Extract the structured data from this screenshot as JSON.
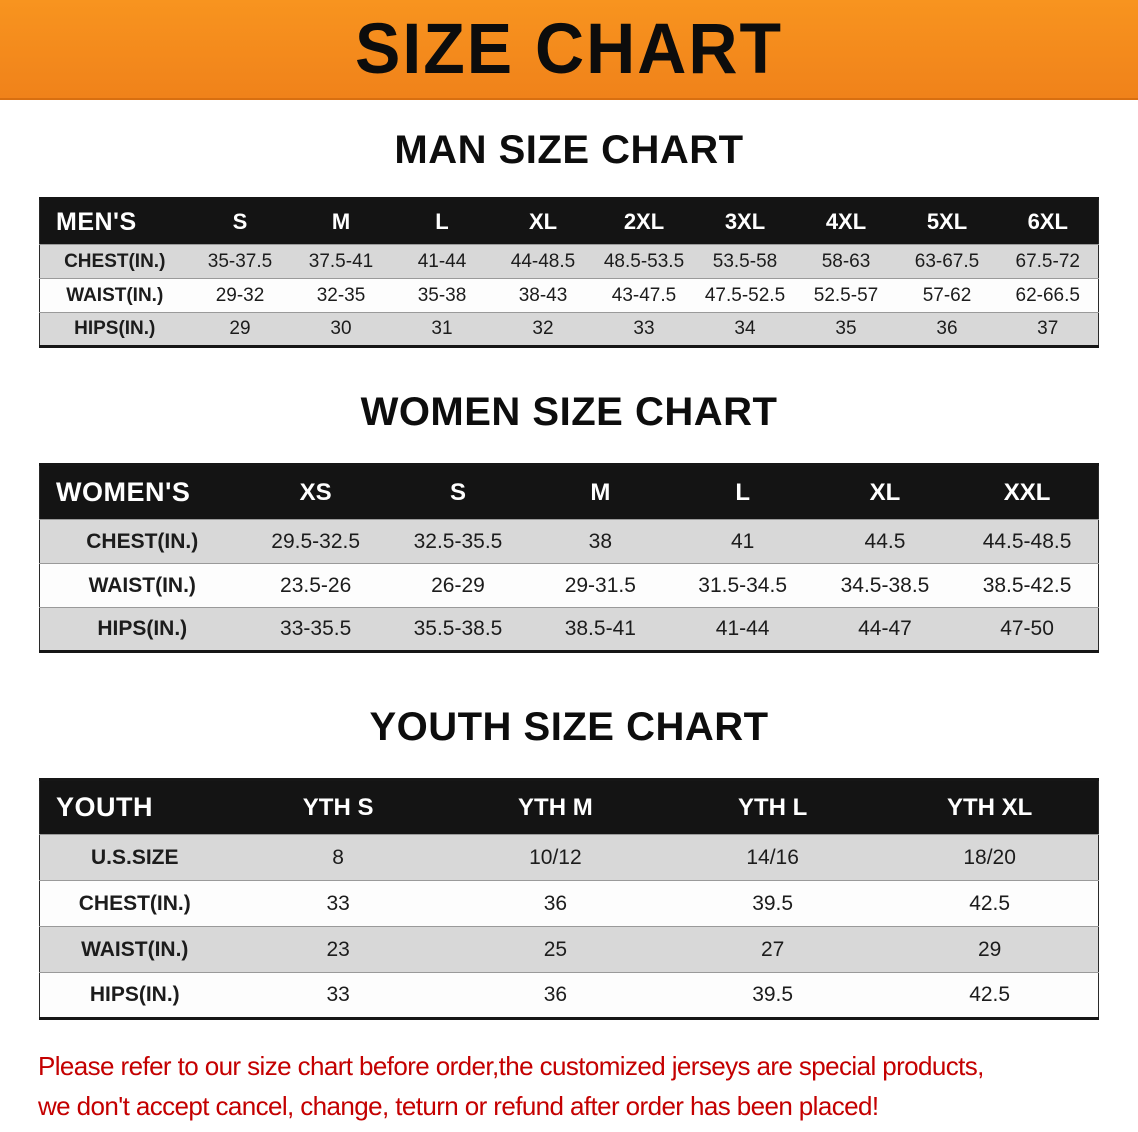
{
  "banner": {
    "title": "SIZE CHART"
  },
  "sections": [
    {
      "heading": "MAN SIZE CHART",
      "table": {
        "title": "MEN'S",
        "columns": [
          "S",
          "M",
          "L",
          "XL",
          "2XL",
          "3XL",
          "4XL",
          "5XL",
          "6XL"
        ],
        "rows": [
          {
            "label": "CHEST(IN.)",
            "values": [
              "35-37.5",
              "37.5-41",
              "41-44",
              "44-48.5",
              "48.5-53.5",
              "53.5-58",
              "58-63",
              "63-67.5",
              "67.5-72"
            ]
          },
          {
            "label": "WAIST(IN.)",
            "values": [
              "29-32",
              "32-35",
              "35-38",
              "38-43",
              "43-47.5",
              "47.5-52.5",
              "52.5-57",
              "57-62",
              "62-66.5"
            ]
          },
          {
            "label": "HIPS(IN.)",
            "values": [
              "29",
              "30",
              "31",
              "32",
              "33",
              "34",
              "35",
              "36",
              "37"
            ]
          }
        ]
      }
    },
    {
      "heading": "WOMEN SIZE CHART",
      "table": {
        "title": "WOMEN'S",
        "columns": [
          "XS",
          "S",
          "M",
          "L",
          "XL",
          "XXL"
        ],
        "rows": [
          {
            "label": "CHEST(IN.)",
            "values": [
              "29.5-32.5",
              "32.5-35.5",
              "38",
              "41",
              "44.5",
              "44.5-48.5"
            ]
          },
          {
            "label": "WAIST(IN.)",
            "values": [
              "23.5-26",
              "26-29",
              "29-31.5",
              "31.5-34.5",
              "34.5-38.5",
              "38.5-42.5"
            ]
          },
          {
            "label": "HIPS(IN.)",
            "values": [
              "33-35.5",
              "35.5-38.5",
              "38.5-41",
              "41-44",
              "44-47",
              "47-50"
            ]
          }
        ]
      }
    },
    {
      "heading": "YOUTH SIZE CHART",
      "table": {
        "title": "YOUTH",
        "columns": [
          "YTH S",
          "YTH M",
          "YTH L",
          "YTH XL"
        ],
        "rows": [
          {
            "label": "U.S.SIZE",
            "values": [
              "8",
              "10/12",
              "14/16",
              "18/20"
            ]
          },
          {
            "label": "CHEST(IN.)",
            "values": [
              "33",
              "36",
              "39.5",
              "42.5"
            ]
          },
          {
            "label": "WAIST(IN.)",
            "values": [
              "23",
              "25",
              "27",
              "29"
            ]
          },
          {
            "label": "HIPS(IN.)",
            "values": [
              "33",
              "36",
              "39.5",
              "42.5"
            ]
          }
        ]
      }
    }
  ],
  "disclaimer": {
    "lines": [
      "Please refer to our size chart before order,the customized jerseys are special products,",
      "we don't accept cancel, change, teturn or refund after order has been placed!"
    ]
  },
  "colors": {
    "banner_orange": "#f68a1c",
    "table_header_black": "#141414",
    "row_shade_gray": "#d8d8d8",
    "disclaimer_red": "#c40000"
  }
}
